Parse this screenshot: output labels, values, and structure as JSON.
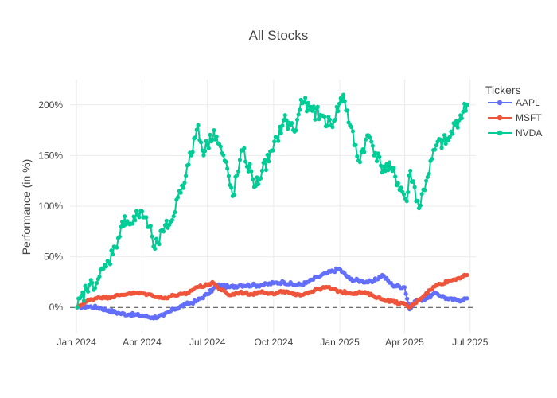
{
  "chart_data": {
    "type": "line",
    "title": "All Stocks",
    "xlabel": "",
    "ylabel": "Performance (in %)",
    "x_tick_labels": [
      "Jan 2024",
      "Apr 2024",
      "Jul 2024",
      "Oct 2024",
      "Jan 2025",
      "Apr 2025",
      "Jul 2025"
    ],
    "y_tick_labels": [
      "0%",
      "50%",
      "100%",
      "150%",
      "200%"
    ],
    "y_ticks": [
      0,
      50,
      100,
      150,
      200
    ],
    "xlim": [
      "2023-12-23",
      "2025-07-09"
    ],
    "ylim": [
      -25,
      225
    ],
    "grid": true,
    "zero_line": "dashed",
    "legend": {
      "title": "Tickers",
      "position": "top-right"
    },
    "series": [
      {
        "name": "AAPL",
        "color": "#636efa",
        "points": [
          [
            "2024-01-02",
            0
          ],
          [
            "2024-01-15",
            1
          ],
          [
            "2024-01-31",
            0
          ],
          [
            "2024-02-15",
            -3
          ],
          [
            "2024-03-01",
            -6
          ],
          [
            "2024-03-15",
            -7
          ],
          [
            "2024-04-01",
            -8
          ],
          [
            "2024-04-15",
            -10
          ],
          [
            "2024-05-01",
            -8
          ],
          [
            "2024-05-15",
            -2
          ],
          [
            "2024-06-01",
            3
          ],
          [
            "2024-06-15",
            6
          ],
          [
            "2024-07-01",
            13
          ],
          [
            "2024-07-15",
            22
          ],
          [
            "2024-08-01",
            20
          ],
          [
            "2024-08-15",
            22
          ],
          [
            "2024-09-01",
            22
          ],
          [
            "2024-09-15",
            22
          ],
          [
            "2024-10-01",
            24
          ],
          [
            "2024-10-15",
            25
          ],
          [
            "2024-11-01",
            22
          ],
          [
            "2024-11-15",
            24
          ],
          [
            "2024-12-01",
            30
          ],
          [
            "2024-12-15",
            34
          ],
          [
            "2024-12-31",
            38
          ],
          [
            "2025-01-15",
            28
          ],
          [
            "2025-02-01",
            26
          ],
          [
            "2025-02-15",
            25
          ],
          [
            "2025-03-01",
            32
          ],
          [
            "2025-03-15",
            22
          ],
          [
            "2025-04-01",
            20
          ],
          [
            "2025-04-08",
            -2
          ],
          [
            "2025-04-15",
            6
          ],
          [
            "2025-05-01",
            9
          ],
          [
            "2025-05-15",
            14
          ],
          [
            "2025-06-01",
            8
          ],
          [
            "2025-06-15",
            7
          ],
          [
            "2025-06-27",
            9
          ]
        ]
      },
      {
        "name": "MSFT",
        "color": "#ef553b",
        "points": [
          [
            "2024-01-02",
            0
          ],
          [
            "2024-01-15",
            6
          ],
          [
            "2024-01-31",
            10
          ],
          [
            "2024-02-15",
            10
          ],
          [
            "2024-03-01",
            12
          ],
          [
            "2024-03-15",
            14
          ],
          [
            "2024-04-01",
            14
          ],
          [
            "2024-04-15",
            12
          ],
          [
            "2024-05-01",
            9
          ],
          [
            "2024-05-15",
            12
          ],
          [
            "2024-06-01",
            13
          ],
          [
            "2024-06-15",
            20
          ],
          [
            "2024-07-01",
            22
          ],
          [
            "2024-07-08",
            25
          ],
          [
            "2024-07-15",
            20
          ],
          [
            "2024-08-01",
            12
          ],
          [
            "2024-08-15",
            15
          ],
          [
            "2024-09-01",
            13
          ],
          [
            "2024-09-15",
            16
          ],
          [
            "2024-10-01",
            13
          ],
          [
            "2024-10-15",
            16
          ],
          [
            "2024-11-01",
            12
          ],
          [
            "2024-11-15",
            14
          ],
          [
            "2024-12-01",
            18
          ],
          [
            "2024-12-15",
            20
          ],
          [
            "2024-12-31",
            16
          ],
          [
            "2025-01-15",
            14
          ],
          [
            "2025-02-01",
            15
          ],
          [
            "2025-02-15",
            12
          ],
          [
            "2025-03-01",
            8
          ],
          [
            "2025-03-15",
            6
          ],
          [
            "2025-04-01",
            3
          ],
          [
            "2025-04-08",
            0
          ],
          [
            "2025-04-15",
            4
          ],
          [
            "2025-05-01",
            14
          ],
          [
            "2025-05-15",
            22
          ],
          [
            "2025-06-01",
            26
          ],
          [
            "2025-06-15",
            29
          ],
          [
            "2025-06-27",
            32
          ]
        ]
      },
      {
        "name": "NVDA",
        "color": "#00cc96",
        "points": [
          [
            "2024-01-02",
            0
          ],
          [
            "2024-01-15",
            18
          ],
          [
            "2024-01-31",
            28
          ],
          [
            "2024-02-15",
            45
          ],
          [
            "2024-02-22",
            60
          ],
          [
            "2024-03-01",
            70
          ],
          [
            "2024-03-08",
            90
          ],
          [
            "2024-03-15",
            82
          ],
          [
            "2024-04-01",
            95
          ],
          [
            "2024-04-15",
            70
          ],
          [
            "2024-04-19",
            58
          ],
          [
            "2024-05-01",
            75
          ],
          [
            "2024-05-15",
            90
          ],
          [
            "2024-05-23",
            115
          ],
          [
            "2024-06-01",
            130
          ],
          [
            "2024-06-18",
            180
          ],
          [
            "2024-06-24",
            155
          ],
          [
            "2024-07-01",
            160
          ],
          [
            "2024-07-10",
            175
          ],
          [
            "2024-07-25",
            145
          ],
          [
            "2024-08-05",
            110
          ],
          [
            "2024-08-19",
            155
          ],
          [
            "2024-09-06",
            120
          ],
          [
            "2024-09-15",
            135
          ],
          [
            "2024-09-30",
            155
          ],
          [
            "2024-10-15",
            185
          ],
          [
            "2024-11-01",
            175
          ],
          [
            "2024-11-08",
            205
          ],
          [
            "2024-11-20",
            195
          ],
          [
            "2024-12-05",
            190
          ],
          [
            "2024-12-20",
            180
          ],
          [
            "2025-01-06",
            210
          ],
          [
            "2025-01-15",
            180
          ],
          [
            "2025-01-27",
            145
          ],
          [
            "2025-02-10",
            170
          ],
          [
            "2025-02-27",
            140
          ],
          [
            "2025-03-15",
            135
          ],
          [
            "2025-04-04",
            105
          ],
          [
            "2025-04-09",
            135
          ],
          [
            "2025-04-21",
            98
          ],
          [
            "2025-05-01",
            125
          ],
          [
            "2025-05-15",
            160
          ],
          [
            "2025-06-01",
            165
          ],
          [
            "2025-06-10",
            180
          ],
          [
            "2025-06-27",
            200
          ]
        ]
      }
    ]
  }
}
